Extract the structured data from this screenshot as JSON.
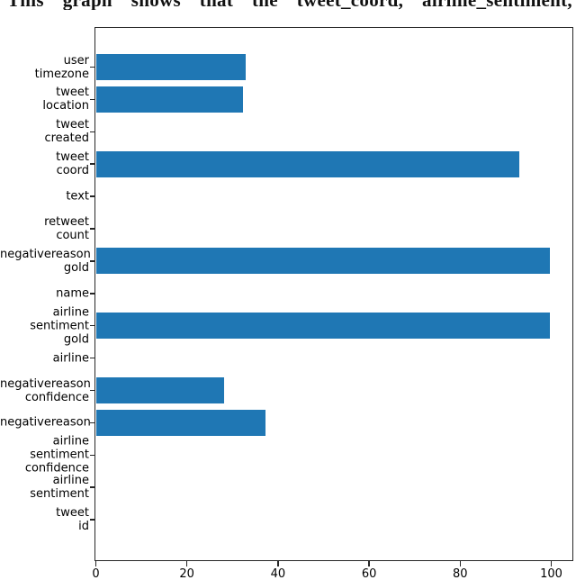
{
  "caption": {
    "text": "This graph shows that the tweet_coord, airline_sentiment,"
  },
  "chart_data": {
    "type": "bar",
    "orientation": "horizontal",
    "title": "",
    "xlabel": "",
    "ylabel": "",
    "categories": [
      "user\ntimezone",
      "tweet\nlocation",
      "tweet\ncreated",
      "tweet\ncoord",
      "text",
      "retweet\ncount",
      "negativereason\ngold",
      "name",
      "airline\nsentiment\ngold",
      "airline",
      "negativereason\nconfidence",
      "negativereason",
      "airline\nsentiment\nconfidence",
      "airline\nsentiment",
      "tweet\nid"
    ],
    "values": [
      32.9,
      32.3,
      0,
      93.0,
      0,
      0,
      99.8,
      0,
      99.7,
      0,
      28.1,
      37.3,
      0,
      0,
      0
    ],
    "xticks": [
      0,
      20,
      40,
      60,
      80,
      100
    ],
    "xlim": [
      0,
      105
    ],
    "grid": false,
    "legend": null,
    "bar_color": "#1f77b4",
    "spine_color": "#262626"
  }
}
